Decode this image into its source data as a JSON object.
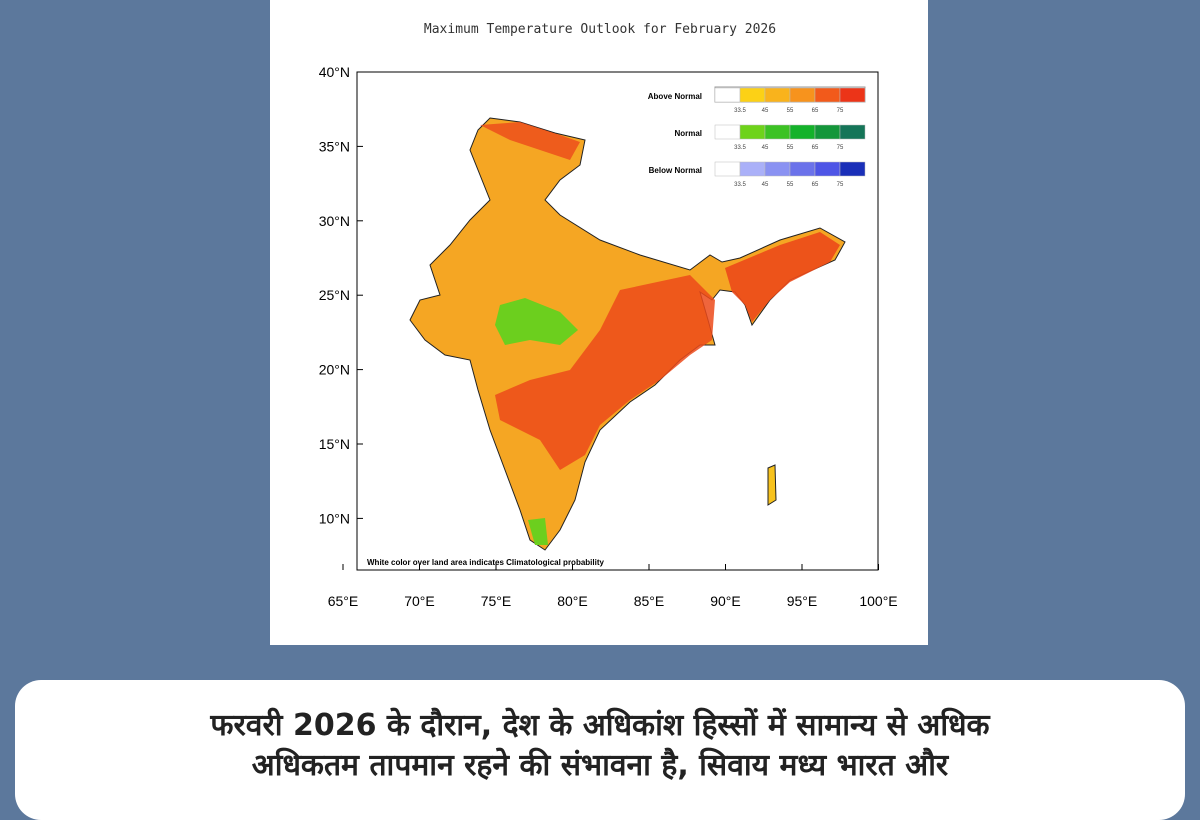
{
  "map": {
    "title": "Maximum Temperature Outlook for February 2026",
    "lat_ticks": [
      "40°N",
      "35°N",
      "30°N",
      "25°N",
      "20°N",
      "15°N",
      "10°N"
    ],
    "lon_ticks": [
      "65°E",
      "70°E",
      "75°E",
      "80°E",
      "85°E",
      "90°E",
      "95°E",
      "100°E"
    ],
    "note": "White color over land area indicates Climatological probability",
    "legend": [
      {
        "label": "Above Normal",
        "colors": [
          "#ffffff",
          "#fcd116",
          "#f9b31c",
          "#f7931d",
          "#f25a1b",
          "#ec3418"
        ]
      },
      {
        "label": "Normal",
        "colors": [
          "#ffffff",
          "#6ed31a",
          "#3cc224",
          "#14b22a",
          "#14963a",
          "#157558"
        ]
      },
      {
        "label": "Below Normal",
        "colors": [
          "#ffffff",
          "#aab0f8",
          "#8a92f2",
          "#6b72ea",
          "#4e55e6",
          "#1a2fb8"
        ]
      }
    ],
    "legend_ticks": [
      "33.5",
      "45",
      "55",
      "65",
      "75"
    ]
  },
  "caption": {
    "line1": "फरवरी 2026 के दौरान, देश के अधिकांश हिस्सों में सामान्य से अधिक",
    "line2": "अधिकतम तापमान रहने की संभावना है, सिवाय मध्य भारत और"
  }
}
